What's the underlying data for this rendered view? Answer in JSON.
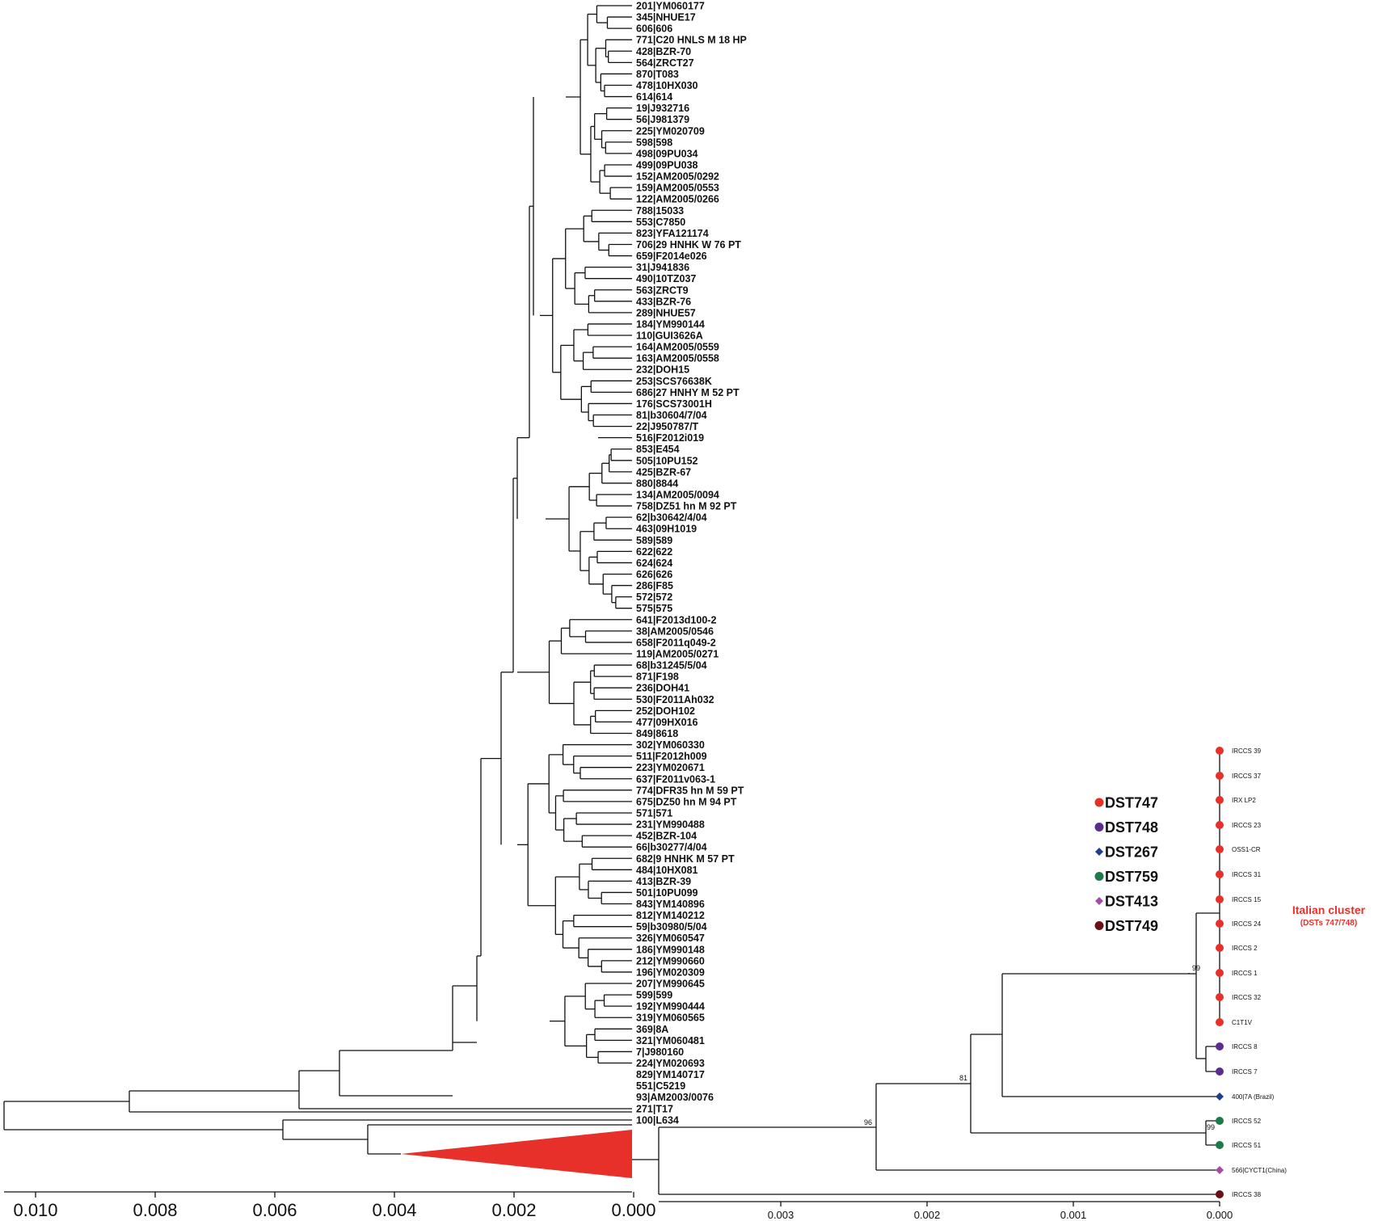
{
  "left_tree": {
    "taxa": [
      "201|YM060177",
      "345|NHUE17",
      "606|606",
      "771|C20 HNLS M 18 HP",
      "428|BZR-70",
      "564|ZRCT27",
      "870|T083",
      "478|10HX030",
      "614|614",
      "19|J932716",
      "56|J981379",
      "225|YM020709",
      "598|598",
      "498|09PU034",
      "499|09PU038",
      "152|AM2005/0292",
      "159|AM2005/0553",
      "122|AM2005/0266",
      "788|15033",
      "553|C7850",
      "823|YFA121174",
      "706|29 HNHK W 76 PT",
      "659|F2014e026",
      "31|J941836",
      "490|10TZ037",
      "563|ZRCT9",
      "433|BZR-76",
      "289|NHUE57",
      "184|YM990144",
      "110|GUI3626A",
      "164|AM2005/0559",
      "163|AM2005/0558",
      "232|DOH15",
      "253|SCS76638K",
      "686|27 HNHY M 52 PT",
      "176|SCS73001H",
      "81|b30604/7/04",
      "22|J950787/T",
      "516|F2012i019",
      "853|E454",
      "505|10PU152",
      "425|BZR-67",
      "880|8844",
      "134|AM2005/0094",
      "758|DZ51 hn M 92 PT",
      "62|b30642/4/04",
      "463|09H1019",
      "589|589",
      "622|622",
      "624|624",
      "626|626",
      "286|F85",
      "572|572",
      "575|575",
      "641|F2013d100-2",
      "38|AM2005/0546",
      "658|F2011q049-2",
      "119|AM2005/0271",
      "68|b31245/5/04",
      "871|F198",
      "236|DOH41",
      "530|F2011Ah032",
      "252|DOH102",
      "477|09HX016",
      "849|8618",
      "302|YM060330",
      "511|F2012h009",
      "223|YM020671",
      "637|F2011v063-1",
      "774|DFR35 hn M 59 PT",
      "675|DZ50 hn M 94 PT",
      "571|571",
      "231|YM990488",
      "452|BZR-104",
      "66|b30277/4/04",
      "682|9 HNHK M 57 PT",
      "484|10HX081",
      "413|BZR-39",
      "501|10PU099",
      "843|YM140896",
      "812|YM140212",
      "59|b30980/5/04",
      "326|YM060547",
      "186|YM990148",
      "212|YM990660",
      "196|YM020309",
      "207|YM990645",
      "599|599",
      "192|YM990444",
      "319|YM060565",
      "369|8A",
      "321|YM060481",
      "7|J980160",
      "224|YM020693",
      "829|YM140717",
      "551|C5219",
      "93|AM2003/0076",
      "271|T17",
      "100|L634"
    ],
    "axis_ticks": [
      "0.010",
      "0.008",
      "0.006",
      "0.004",
      "0.002",
      "0.000"
    ],
    "collapsed_clade_color": "#e8302a"
  },
  "right_tree": {
    "taxa": [
      {
        "label": "IRCCS 39",
        "dst": "DST747"
      },
      {
        "label": "IRCCS 37",
        "dst": "DST747"
      },
      {
        "label": "IRX LP2",
        "dst": "DST747"
      },
      {
        "label": "IRCCS 23",
        "dst": "DST747"
      },
      {
        "label": "OSS1-CR",
        "dst": "DST747"
      },
      {
        "label": "IRCCS 31",
        "dst": "DST747"
      },
      {
        "label": "IRCCS 15",
        "dst": "DST747"
      },
      {
        "label": "IRCCS 24",
        "dst": "DST747"
      },
      {
        "label": "IRCCS 2",
        "dst": "DST747"
      },
      {
        "label": "IRCCS 1",
        "dst": "DST747"
      },
      {
        "label": "IRCCS 32",
        "dst": "DST747"
      },
      {
        "label": "C1T1V",
        "dst": "DST747"
      },
      {
        "label": "IRCCS 8",
        "dst": "DST748"
      },
      {
        "label": "IRCCS 7",
        "dst": "DST748"
      },
      {
        "label": "400|7A (Brazil)",
        "dst": "DST267"
      },
      {
        "label": "IRCCS 52",
        "dst": "DST759"
      },
      {
        "label": "IRCCS 51",
        "dst": "DST759"
      },
      {
        "label": "566|CYCT1(China)",
        "dst": "DST413"
      },
      {
        "label": "IRCCS 38",
        "dst": "DST749"
      }
    ],
    "bootstrap": {
      "italian": "99",
      "node81": "81",
      "node96": "96",
      "node99b": "99"
    },
    "axis_ticks": [
      "0.003",
      "0.002",
      "0.001",
      "0.000"
    ],
    "cluster_title": "Italian cluster",
    "cluster_subtitle": "(DSTs 747/748)",
    "cluster_color": "#e8302a"
  },
  "legend": [
    {
      "label": "DST747",
      "shape": "circle",
      "color": "#e8302a"
    },
    {
      "label": "DST748",
      "shape": "circle",
      "color": "#5b2d8e"
    },
    {
      "label": "DST267",
      "shape": "diamond",
      "color": "#1f3f8f"
    },
    {
      "label": "DST759",
      "shape": "circle",
      "color": "#1e7a48"
    },
    {
      "label": "DST413",
      "shape": "diamond",
      "color": "#a54ba6"
    },
    {
      "label": "DST749",
      "shape": "circle",
      "color": "#6b0f14"
    }
  ]
}
